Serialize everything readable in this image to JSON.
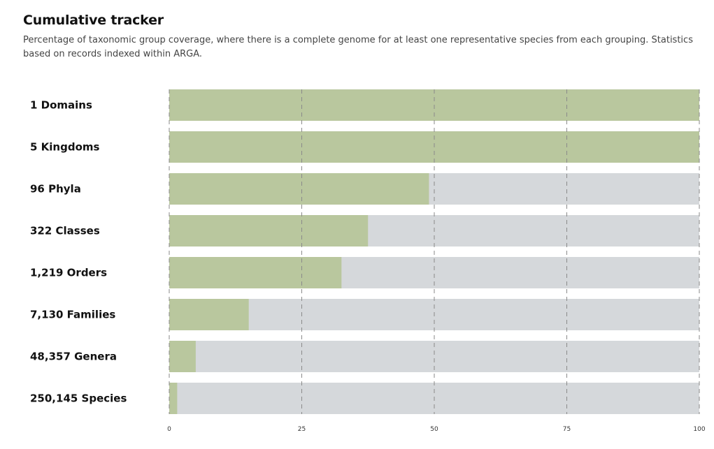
{
  "header": {
    "title": "Cumulative tracker",
    "subtitle": "Percentage of taxonomic group coverage, where there is a complete genome for at least one representative species from each grouping. Statistics based on records indexed within ARGA."
  },
  "colors": {
    "covered": "#b9c79e",
    "remaining": "#d5d8db",
    "grid": "#8a8a8a"
  },
  "chart_data": {
    "type": "bar",
    "orientation": "horizontal",
    "stacked": true,
    "categories": [
      "1 Domains",
      "5 Kingdoms",
      "96 Phyla",
      "322 Classes",
      "1,219 Orders",
      "7,130 Families",
      "48,357 Genera",
      "250,145 Species"
    ],
    "values": [
      100,
      100,
      49,
      37.5,
      32.5,
      15,
      5,
      1.5
    ],
    "xlim": [
      0,
      100
    ],
    "xticks": [
      "0",
      "25",
      "50",
      "75",
      "100"
    ],
    "grid": "dashed vertical"
  }
}
